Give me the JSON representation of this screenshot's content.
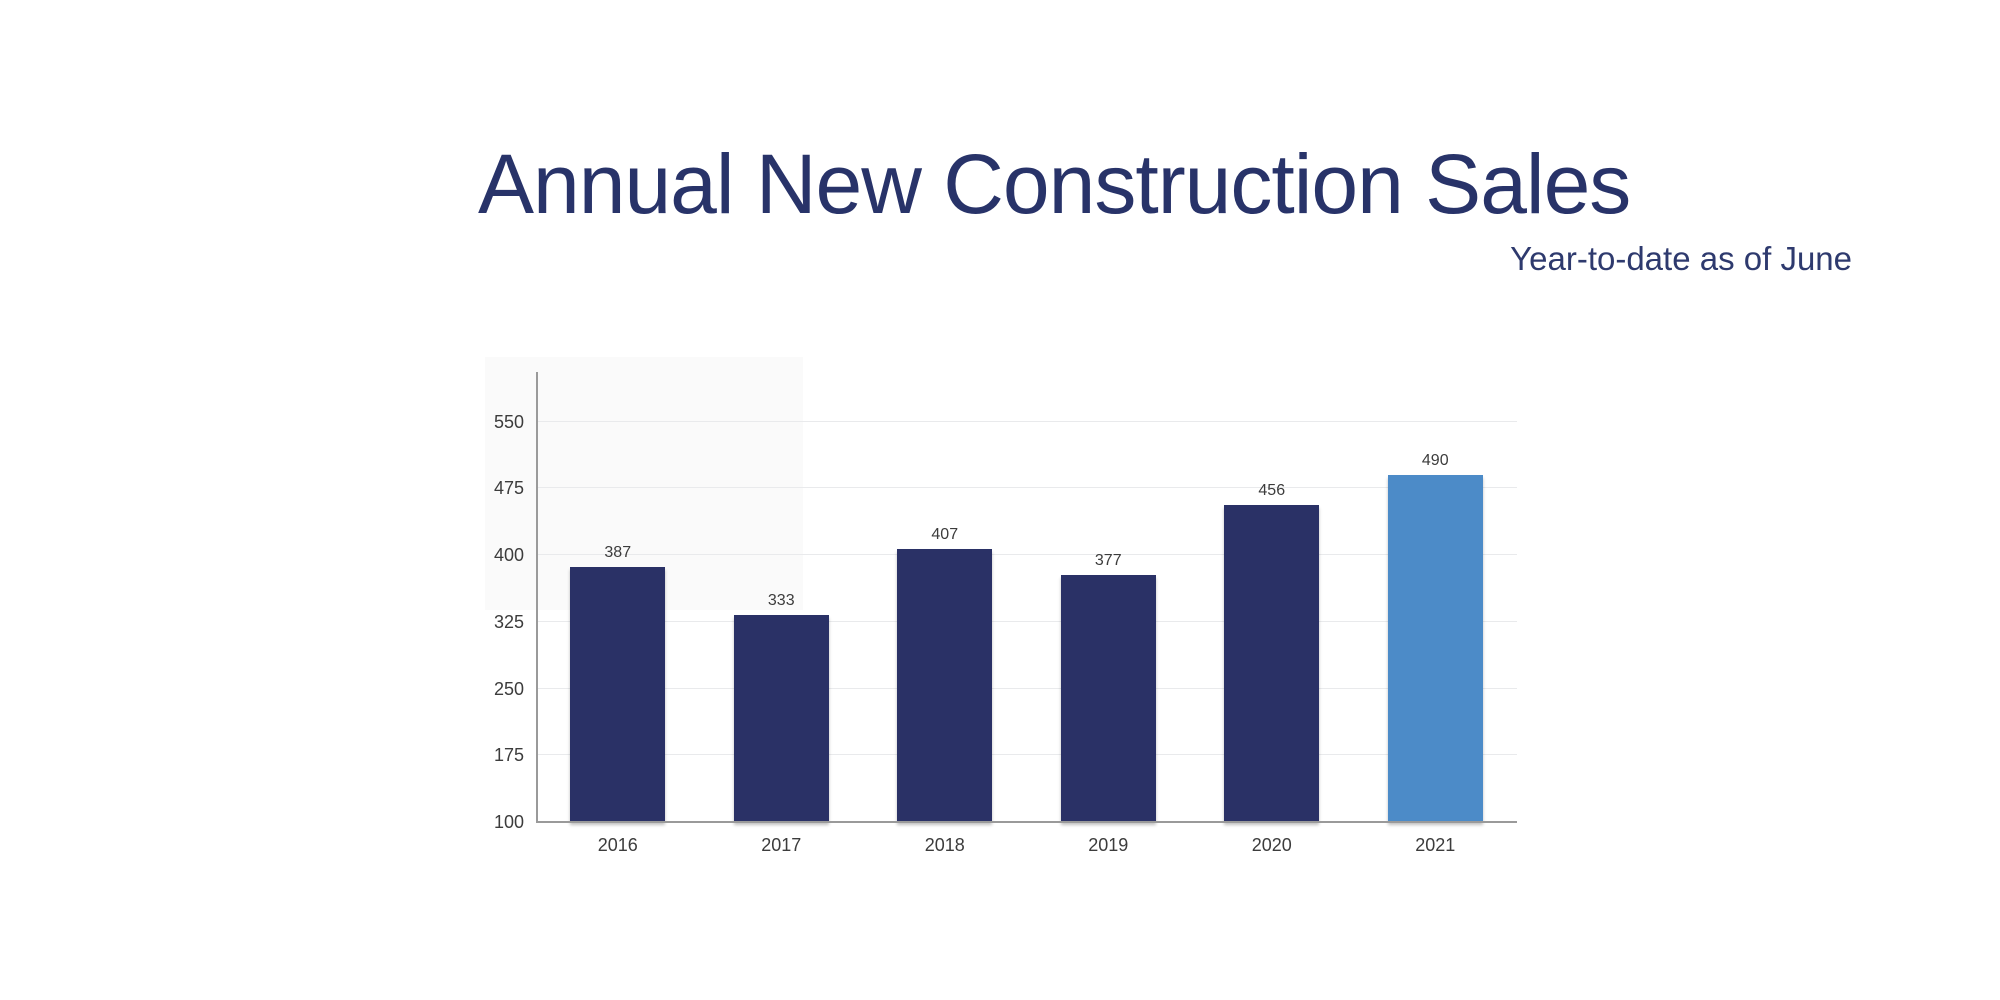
{
  "header": {
    "title": "Annual New Construction Sales",
    "subtitle": "Year-to-date as of June"
  },
  "chart_data": {
    "type": "bar",
    "title": "Annual New Construction Sales",
    "subtitle": "Year-to-date as of June",
    "categories": [
      "2016",
      "2017",
      "2018",
      "2019",
      "2020",
      "2021"
    ],
    "values": [
      387,
      333,
      407,
      377,
      456,
      490
    ],
    "xlabel": "",
    "ylabel": "",
    "ylim": [
      100,
      600
    ],
    "yticks": [
      100,
      175,
      250,
      325,
      400,
      475,
      550
    ],
    "grid": true,
    "legend": false,
    "bar_colors": [
      "#2a3166",
      "#2a3166",
      "#2a3166",
      "#2a3166",
      "#2a3166",
      "#4c8bc8"
    ],
    "highlighted_category": "2021",
    "colors": {
      "bar_default": "#2a3166",
      "bar_highlight": "#4c8bc8",
      "title_text": "#283369",
      "subtitle_text": "#2e3a6e",
      "tick_text": "#3c3c3c",
      "value_label_text": "#3c3c3c",
      "gridline": "#e9eaec",
      "axis_line": "#9a9a9a",
      "background": "#ffffff"
    }
  }
}
